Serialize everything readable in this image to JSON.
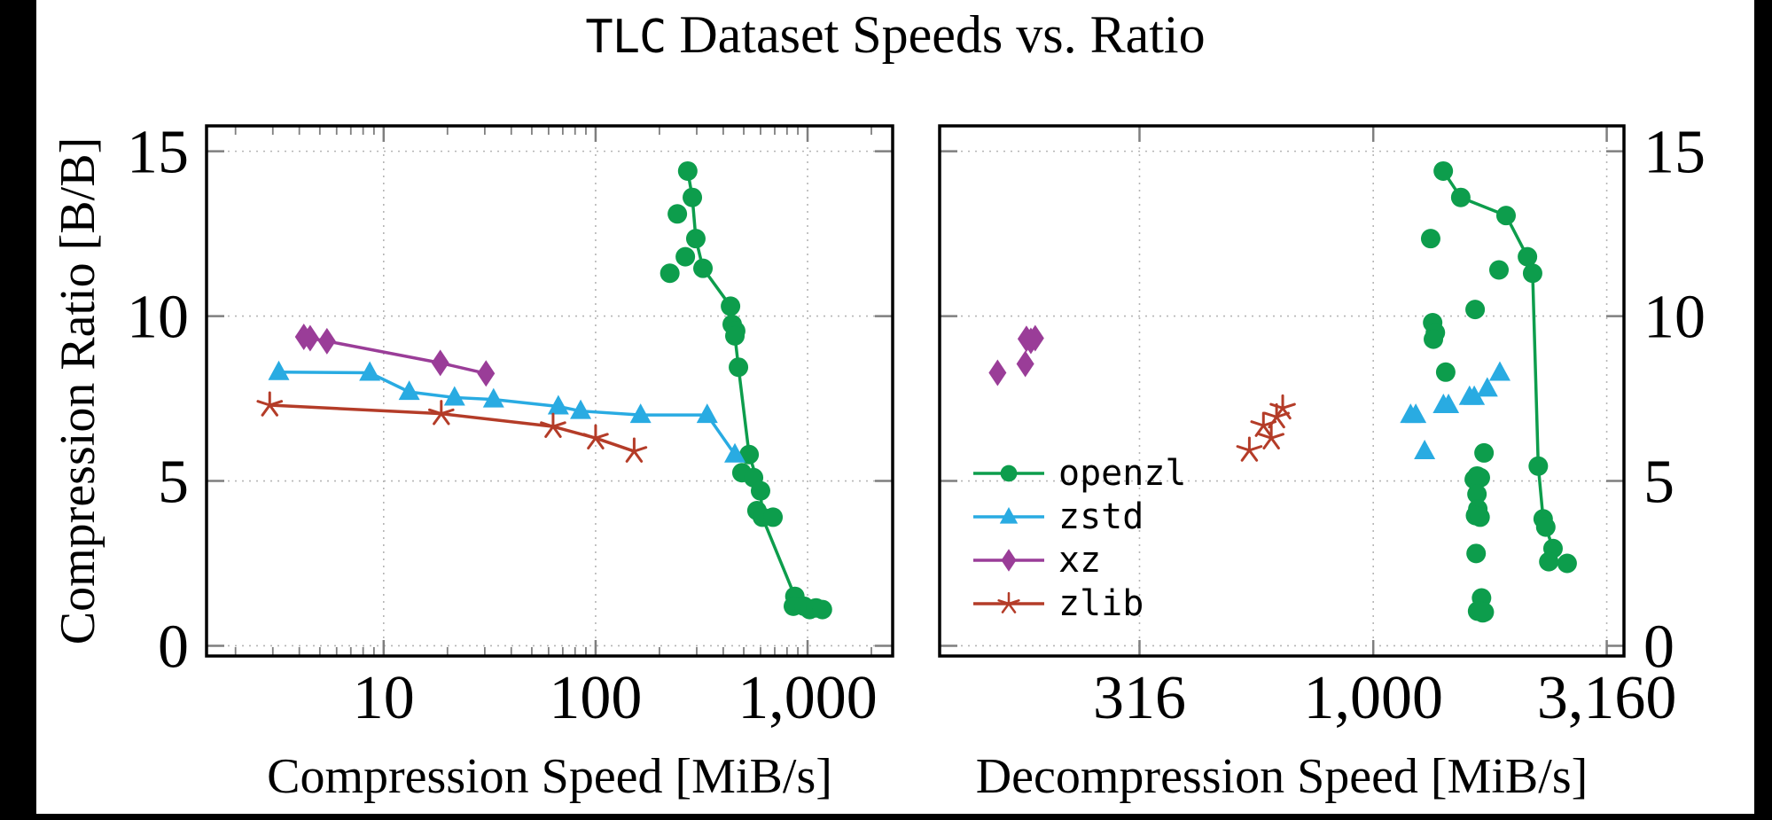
{
  "title": {
    "prefix": "TLC",
    "rest": " Dataset Speeds vs. Ratio"
  },
  "colors": {
    "openzl": "#0d9d4c",
    "zstd": "#29abe2",
    "xz": "#9a3d98",
    "zlib": "#b43c28",
    "grid": "#b5b5b5",
    "tick": "#7f7f7f",
    "frame": "#000000",
    "text": "#000000",
    "background": "#ffffff"
  },
  "chart_data": [
    {
      "id": "compression",
      "type": "scatter",
      "xscale": "log",
      "xlabel": "Compression Speed [MiB/s]",
      "ylabel": "Compression Ratio [B/B]",
      "xlim": [
        1.46,
        2520
      ],
      "ylim": [
        -0.31,
        15.77
      ],
      "xticks": [
        {
          "v": 10,
          "label": "10"
        },
        {
          "v": 100,
          "label": "100"
        },
        {
          "v": 1000,
          "label": "1,000"
        }
      ],
      "xminor": [
        2,
        3,
        4,
        5,
        6,
        7,
        8,
        9,
        20,
        30,
        40,
        50,
        60,
        70,
        80,
        90,
        200,
        300,
        400,
        500,
        600,
        700,
        800,
        900,
        2000
      ],
      "yticks": [
        {
          "v": 0,
          "label": "0"
        },
        {
          "v": 5,
          "label": "5"
        },
        {
          "v": 10,
          "label": "10"
        },
        {
          "v": 15,
          "label": "15"
        }
      ],
      "ylabel_side": "left",
      "grid": true,
      "series": [
        {
          "name": "openzl",
          "label": "openzl",
          "marker": "circle",
          "has_line": true,
          "points": [
            [
              272,
              14.4
            ],
            [
              286,
              13.6
            ],
            [
              243,
              13.1
            ],
            [
              297,
              12.35
            ],
            [
              265,
              11.8
            ],
            [
              224,
              11.3
            ],
            [
              321,
              11.45
            ],
            [
              433,
              10.3
            ],
            [
              441,
              9.75
            ],
            [
              458,
              9.55
            ],
            [
              454,
              9.4
            ],
            [
              472,
              8.45
            ],
            [
              530,
              5.8
            ],
            [
              490,
              5.25
            ],
            [
              556,
              5.1
            ],
            [
              600,
              4.7
            ],
            [
              577,
              4.1
            ],
            [
              612,
              3.9
            ],
            [
              687,
              3.9
            ],
            [
              871,
              1.5
            ],
            [
              857,
              1.2
            ],
            [
              962,
              1.2
            ],
            [
              1023,
              1.1
            ],
            [
              1096,
              1.15
            ],
            [
              1175,
              1.1
            ]
          ],
          "line_points": [
            [
              272,
              14.4
            ],
            [
              286,
              13.6
            ],
            [
              297,
              12.35
            ],
            [
              321,
              11.45
            ],
            [
              433,
              10.3
            ],
            [
              441,
              9.75
            ],
            [
              458,
              9.55
            ],
            [
              454,
              9.4
            ],
            [
              472,
              8.45
            ],
            [
              530,
              5.8
            ],
            [
              600,
              4.7
            ],
            [
              612,
              3.9
            ],
            [
              871,
              1.5
            ],
            [
              1023,
              1.1
            ],
            [
              1175,
              1.1
            ]
          ]
        },
        {
          "name": "zstd",
          "label": "zstd",
          "marker": "triangle",
          "has_line": true,
          "points": [
            [
              3.2,
              8.3
            ],
            [
              8.6,
              8.28
            ],
            [
              13.2,
              7.7
            ],
            [
              21.6,
              7.53
            ],
            [
              33,
              7.47
            ],
            [
              66.7,
              7.26
            ],
            [
              85,
              7.12
            ],
            [
              163,
              7.0
            ],
            [
              336,
              7.0
            ],
            [
              454,
              5.8
            ]
          ]
        },
        {
          "name": "xz",
          "label": "xz",
          "marker": "diamond",
          "has_line": true,
          "points": [
            [
              4.2,
              9.37
            ],
            [
              4.5,
              9.33
            ],
            [
              5.4,
              9.24
            ],
            [
              18.5,
              8.58
            ],
            [
              30.4,
              8.26
            ]
          ]
        },
        {
          "name": "zlib",
          "label": "zlib",
          "marker": "star",
          "has_line": true,
          "points": [
            [
              2.9,
              7.3
            ],
            [
              18.7,
              7.04
            ],
            [
              63,
              6.65
            ],
            [
              100,
              6.3
            ],
            [
              152,
              5.9
            ]
          ]
        }
      ]
    },
    {
      "id": "decompression",
      "type": "scatter",
      "xscale": "log",
      "xlabel": "Decompression Speed [MiB/s]",
      "xlim": [
        118,
        3440
      ],
      "ylim": [
        -0.31,
        15.77
      ],
      "xticks": [
        {
          "v": 316,
          "label": "316"
        },
        {
          "v": 1000,
          "label": "1,000"
        },
        {
          "v": 3160,
          "label": "3,160"
        }
      ],
      "xminor": [],
      "yticks": [
        {
          "v": 0,
          "label": "0"
        },
        {
          "v": 5,
          "label": "5"
        },
        {
          "v": 10,
          "label": "10"
        },
        {
          "v": 15,
          "label": "15"
        }
      ],
      "ylabel_side": "right",
      "grid": true,
      "series": [
        {
          "name": "openzl",
          "label": "openzl",
          "marker": "circle",
          "has_line": true,
          "points": [
            [
              1412,
              14.4
            ],
            [
              1539,
              13.6
            ],
            [
              1924,
              13.05
            ],
            [
              1327,
              12.35
            ],
            [
              2138,
              11.8
            ],
            [
              1858,
              11.4
            ],
            [
              2193,
              11.3
            ],
            [
              1652,
              10.2
            ],
            [
              1340,
              9.8
            ],
            [
              1358,
              9.5
            ],
            [
              1345,
              9.3
            ],
            [
              1429,
              8.3
            ],
            [
              1726,
              5.85
            ],
            [
              2255,
              5.45
            ],
            [
              1645,
              5.05
            ],
            [
              1668,
              5.15
            ],
            [
              1685,
              5.1
            ],
            [
              1695,
              5.1
            ],
            [
              1667,
              4.6
            ],
            [
              1674,
              4.15
            ],
            [
              1655,
              3.95
            ],
            [
              1693,
              3.9
            ],
            [
              2310,
              3.85
            ],
            [
              2340,
              3.6
            ],
            [
              2425,
              2.95
            ],
            [
              1660,
              2.8
            ],
            [
              2375,
              2.55
            ],
            [
              2600,
              2.5
            ],
            [
              1705,
              1.45
            ],
            [
              1672,
              1.05
            ],
            [
              1700,
              1.05
            ],
            [
              1715,
              1.0
            ],
            [
              1728,
              1.02
            ]
          ],
          "line_points": [
            [
              1412,
              14.4
            ],
            [
              1539,
              13.6
            ],
            [
              1924,
              13.05
            ],
            [
              2138,
              11.8
            ],
            [
              2193,
              11.3
            ],
            [
              2255,
              5.45
            ],
            [
              2310,
              3.85
            ],
            [
              2340,
              3.6
            ],
            [
              2425,
              2.95
            ],
            [
              2375,
              2.55
            ]
          ]
        },
        {
          "name": "zstd",
          "label": "zstd",
          "marker": "triangle",
          "has_line": false,
          "points": [
            [
              1202,
              7.0
            ],
            [
              1233,
              7.0
            ],
            [
              1413,
              7.3
            ],
            [
              1449,
              7.3
            ],
            [
              1607,
              7.55
            ],
            [
              1645,
              7.55
            ],
            [
              1754,
              7.8
            ],
            [
              1866,
              8.28
            ],
            [
              1288,
              5.9
            ]
          ]
        },
        {
          "name": "xz",
          "label": "xz",
          "marker": "diamond",
          "has_line": false,
          "points": [
            [
              157,
              8.28
            ],
            [
              180,
              8.55
            ],
            [
              181,
              9.31
            ],
            [
              189,
              9.33
            ],
            [
              185,
              9.25
            ]
          ]
        },
        {
          "name": "zlib",
          "label": "zlib",
          "marker": "star",
          "has_line": false,
          "points": [
            [
              543,
              5.93
            ],
            [
              582,
              6.68
            ],
            [
              605,
              6.3
            ],
            [
              621,
              6.94
            ],
            [
              640,
              7.21
            ]
          ]
        }
      ]
    }
  ]
}
